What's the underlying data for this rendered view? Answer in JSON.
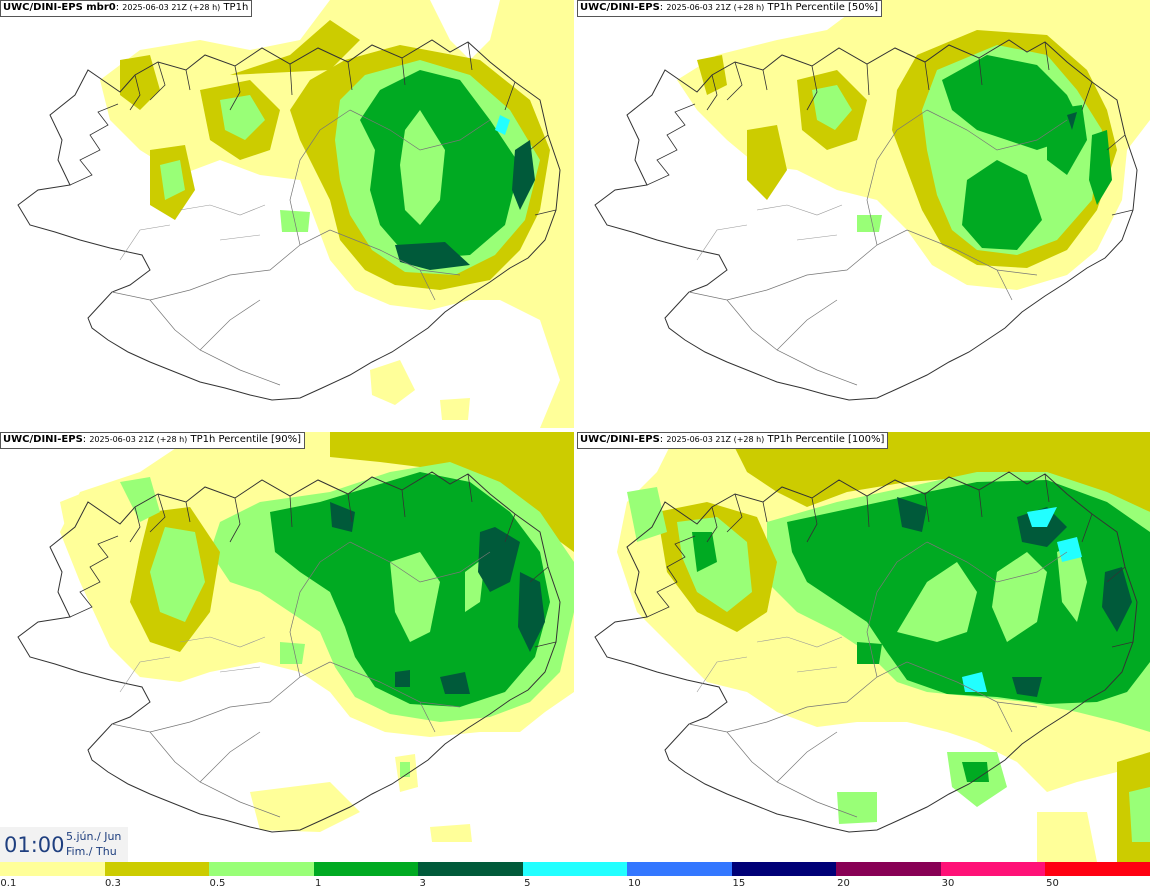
{
  "panels": [
    {
      "model": "UWC/DINI-EPS mbr0",
      "meta": "2025-06-03 21Z (+28 h)",
      "field": "TP1h"
    },
    {
      "model": "UWC/DINI-EPS",
      "meta": "2025-06-03 21Z (+28 h)",
      "field": "TP1h Percentile [50%]"
    },
    {
      "model": "UWC/DINI-EPS",
      "meta": "2025-06-03 21Z (+28 h)",
      "field": "TP1h Percentile [90%]"
    },
    {
      "model": "UWC/DINI-EPS",
      "meta": "2025-06-03 21Z (+28 h)",
      "field": "TP1h Percentile [100%]"
    }
  ],
  "time": {
    "hour": "01:00",
    "date_line1": "5.jún./ Jun",
    "date_line2": "Fim./ Thu"
  },
  "legend": {
    "ticks": [
      "0.1",
      "0.3",
      "0.5",
      "1",
      "3",
      "5",
      "10",
      "15",
      "20",
      "30",
      "50"
    ],
    "colors": [
      "#ffff99",
      "#cccc00",
      "#99ff77",
      "#00aa22",
      "#005a3a",
      "#22ffff",
      "#3377ff",
      "#000077",
      "#880055",
      "#ff1177",
      "#ff0011"
    ]
  }
}
